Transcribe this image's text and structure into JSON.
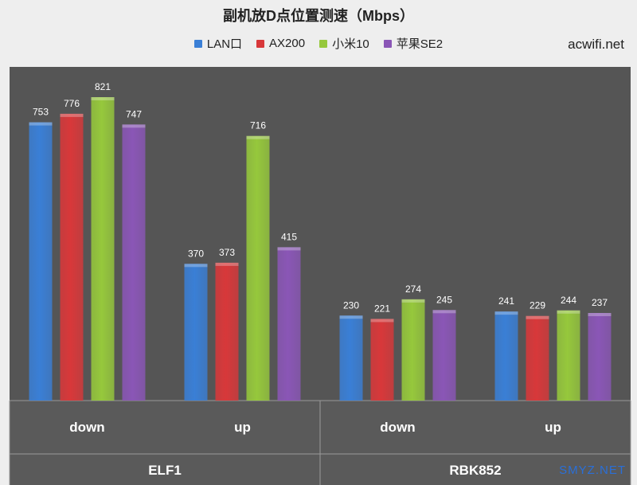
{
  "title": "副机放D点位置测速（Mbps）",
  "watermarks": {
    "top_right": "acwifi.net",
    "bottom_right": "SMYZ.NET"
  },
  "colors": {
    "plot_bg": "#555555",
    "outer_bg": "#eeeeee",
    "series": [
      "#3a7fd6",
      "#d8383a",
      "#96c83c",
      "#8a56b6"
    ]
  },
  "chart_data": {
    "type": "bar",
    "title": "副机放D点位置测速（Mbps）",
    "ylim": [
      0,
      1000
    ],
    "grid": false,
    "legend_position": "top",
    "group_labels": [
      "ELF1",
      "RBK852"
    ],
    "categories": [
      "down",
      "up",
      "down",
      "up"
    ],
    "series": [
      {
        "name": "LAN口",
        "color": "#3a7fd6",
        "values": [
          753,
          370,
          230,
          241
        ]
      },
      {
        "name": "AX200",
        "color": "#d8383a",
        "values": [
          776,
          373,
          221,
          229
        ]
      },
      {
        "name": "小米10",
        "color": "#96c83c",
        "values": [
          821,
          716,
          274,
          244
        ]
      },
      {
        "name": "苹果SE2",
        "color": "#8a56b6",
        "values": [
          747,
          415,
          245,
          237
        ]
      }
    ]
  }
}
